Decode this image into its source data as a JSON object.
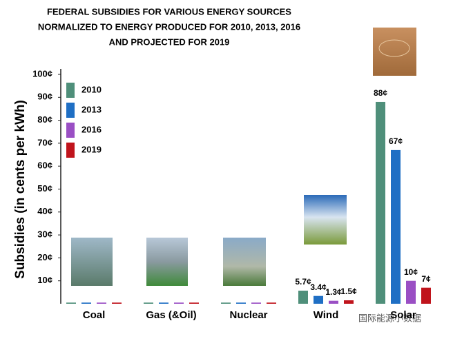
{
  "chart_data": {
    "type": "bar",
    "title": [
      "FEDERAL SUBSIDIES FOR VARIOUS ENERGY SOURCES",
      "NORMALIZED TO ENERGY PRODUCED FOR 2010, 2013, 2016",
      "AND PROJECTED FOR 2019"
    ],
    "y_label": "Subsidies (in cents per kWh)",
    "categories": [
      "Coal",
      "Gas (&Oil)",
      "Nuclear",
      "Wind",
      "Solar"
    ],
    "series": [
      {
        "name": "2010",
        "color": "#4f8f7a",
        "values": [
          0.5,
          0.5,
          0.5,
          5.7,
          88
        ],
        "value_labels": [
          null,
          null,
          null,
          "5.7¢",
          "88¢"
        ]
      },
      {
        "name": "2013",
        "color": "#1f6fc4",
        "values": [
          0.5,
          0.5,
          0.5,
          3.4,
          67
        ],
        "value_labels": [
          null,
          null,
          null,
          "3.4¢",
          "67¢"
        ]
      },
      {
        "name": "2016",
        "color": "#9a4fc4",
        "values": [
          0.5,
          0.5,
          0.5,
          1.3,
          10
        ],
        "value_labels": [
          null,
          null,
          null,
          "1.3¢",
          "10¢"
        ]
      },
      {
        "name": "2019",
        "color": "#c0141c",
        "values": [
          0.5,
          0.5,
          0.5,
          1.5,
          7
        ],
        "value_labels": [
          null,
          null,
          null,
          "1.5¢",
          "7¢"
        ]
      }
    ],
    "ylim": [
      0,
      100
    ],
    "yticks": [
      {
        "value": 10,
        "label": "10¢"
      },
      {
        "value": 20,
        "label": "20¢"
      },
      {
        "value": 30,
        "label": "30¢"
      },
      {
        "value": 40,
        "label": "40¢"
      },
      {
        "value": 50,
        "label": "50¢"
      },
      {
        "value": 60,
        "label": "60¢"
      },
      {
        "value": 70,
        "label": "70¢"
      },
      {
        "value": 80,
        "label": "80¢"
      },
      {
        "value": 90,
        "label": "90¢"
      },
      {
        "value": 100,
        "label": "100¢"
      }
    ],
    "legend": "top-left",
    "watermark": "国际能源小数据"
  }
}
